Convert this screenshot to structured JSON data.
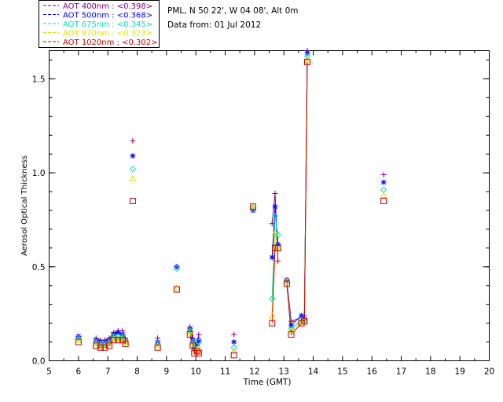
{
  "header": {
    "site_line": "PML, N 50 22', W 04 08', Alt 0m",
    "date_line": "Data from: 01 Jul 2012"
  },
  "legend": [
    {
      "label": "AOT  400nm : <0.398>",
      "color": "#800080"
    },
    {
      "label": "AOT  500nm : <0.368>",
      "color": "#0000ff"
    },
    {
      "label": "AOT  675nm : <0.345>",
      "color": "#00e0c0"
    },
    {
      "label": "AOT  870nm : <0.323>",
      "color": "#e0e000"
    },
    {
      "label": "AOT 1020nm : <0.302>",
      "color": "#cc0000"
    }
  ],
  "chart_data": {
    "type": "scatter",
    "xlabel": "Time (GMT)",
    "ylabel": "Aerosol Optical Thickness",
    "xlim": [
      5,
      20
    ],
    "ylim": [
      0,
      1.65
    ],
    "xticks": [
      5,
      6,
      7,
      8,
      9,
      10,
      11,
      12,
      13,
      14,
      15,
      16,
      17,
      18,
      19,
      20
    ],
    "yticks": [
      0.0,
      0.5,
      1.0,
      1.5
    ],
    "ytick_labels": [
      "0.0",
      "0.5",
      "1.0",
      "1.5"
    ],
    "x": [
      6.0,
      6.6,
      6.75,
      6.9,
      7.05,
      7.2,
      7.35,
      7.5,
      7.6,
      7.85,
      8.7,
      9.35,
      9.8,
      9.9,
      9.95,
      10.05,
      10.1,
      11.3,
      11.95,
      12.6,
      12.7,
      12.8,
      13.1,
      13.25,
      13.6,
      13.7,
      13.8,
      16.4
    ],
    "connected_groups": [
      [
        1,
        8
      ],
      [
        12,
        16
      ],
      [
        19,
        21
      ],
      [
        22,
        26
      ]
    ],
    "series": [
      {
        "name": "AOT  400nm : <0.398>",
        "marker": "plus",
        "values": [
          0.13,
          0.12,
          0.11,
          0.11,
          0.12,
          0.15,
          0.16,
          0.16,
          0.12,
          1.17,
          0.12,
          0.5,
          0.18,
          0.12,
          0.08,
          0.1,
          0.14,
          0.14,
          0.8,
          0.73,
          0.89,
          0.53,
          0.43,
          0.21,
          0.23,
          0.24,
          1.65,
          0.99
        ]
      },
      {
        "name": "AOT  500nm : <0.368>",
        "marker": "star",
        "values": [
          0.13,
          0.11,
          0.1,
          0.1,
          0.11,
          0.14,
          0.15,
          0.14,
          0.11,
          1.09,
          0.1,
          0.5,
          0.17,
          0.11,
          0.07,
          0.09,
          0.11,
          0.1,
          0.8,
          0.55,
          0.82,
          0.62,
          0.43,
          0.19,
          0.24,
          0.22,
          1.64,
          0.95
        ]
      },
      {
        "name": "AOT  675nm : <0.345>",
        "marker": "diamond",
        "values": [
          0.12,
          0.1,
          0.09,
          0.09,
          0.1,
          0.13,
          0.13,
          0.13,
          0.1,
          1.02,
          0.09,
          0.49,
          0.16,
          0.1,
          0.06,
          0.08,
          0.1,
          0.07,
          0.81,
          0.33,
          0.77,
          0.67,
          0.42,
          0.17,
          0.22,
          0.21,
          1.62,
          0.91
        ]
      },
      {
        "name": "AOT  870nm : <0.323>",
        "marker": "triangle",
        "values": [
          0.11,
          0.09,
          0.08,
          0.08,
          0.09,
          0.12,
          0.12,
          0.12,
          0.1,
          0.97,
          0.08,
          0.39,
          0.15,
          0.09,
          0.05,
          0.06,
          0.06,
          0.05,
          0.82,
          0.24,
          0.68,
          0.6,
          0.42,
          0.16,
          0.21,
          0.21,
          1.6,
          0.88
        ]
      },
      {
        "name": "AOT 1020nm : <0.302>",
        "marker": "square",
        "values": [
          0.1,
          0.08,
          0.07,
          0.07,
          0.08,
          0.11,
          0.11,
          0.11,
          0.09,
          0.85,
          0.07,
          0.38,
          0.14,
          0.08,
          0.04,
          0.05,
          0.04,
          0.03,
          0.82,
          0.2,
          0.6,
          0.6,
          0.41,
          0.14,
          0.2,
          0.21,
          1.59,
          0.85
        ]
      }
    ]
  }
}
